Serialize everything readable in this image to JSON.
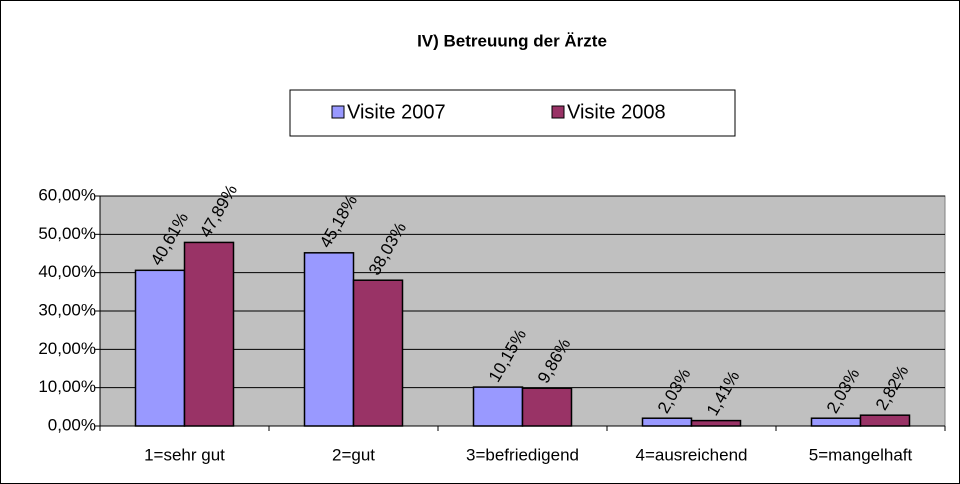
{
  "chart_data": {
    "type": "bar",
    "title": "IV) Betreuung der Ärzte",
    "categories": [
      "1=sehr gut",
      "2=gut",
      "3=befriedigend",
      "4=ausreichend",
      "5=mangelhaft"
    ],
    "series": [
      {
        "name": "Visite 2007",
        "color": "#9999ff",
        "values": [
          40.61,
          45.18,
          10.15,
          2.03,
          2.03
        ],
        "value_labels": [
          "40,61%",
          "45,18%",
          "10,15%",
          "2,03%",
          "2,03%"
        ]
      },
      {
        "name": "Visite 2008",
        "color": "#993366",
        "values": [
          47.89,
          38.03,
          9.86,
          1.41,
          2.82
        ],
        "value_labels": [
          "47,89%",
          "38,03%",
          "9,86%",
          "1,41%",
          "2,82%"
        ]
      }
    ],
    "ylim": [
      0,
      60
    ],
    "yticks": [
      {
        "value": 0,
        "label": "0,00%"
      },
      {
        "value": 10,
        "label": "10,00%"
      },
      {
        "value": 20,
        "label": "20,00%"
      },
      {
        "value": 30,
        "label": "30,00%"
      },
      {
        "value": 40,
        "label": "40,00%"
      },
      {
        "value": 50,
        "label": "50,00%"
      },
      {
        "value": 60,
        "label": "60,00%"
      }
    ],
    "grid": true,
    "legend": "top"
  }
}
